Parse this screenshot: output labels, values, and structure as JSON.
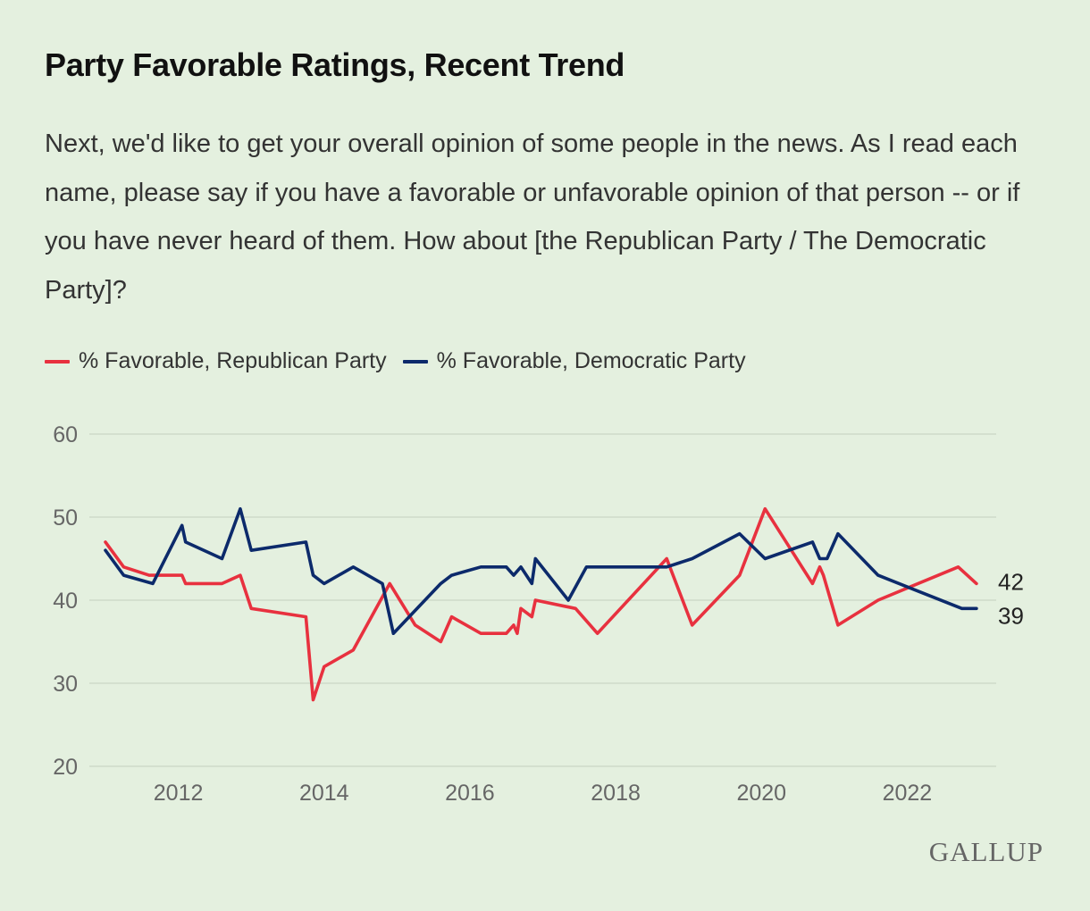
{
  "title": "Party Favorable Ratings, Recent Trend",
  "subtitle": "Next, we'd like to get your overall opinion of some people in the news. As I read each name, please say if you have a favorable or unfavorable opinion of that person -- or if you have never heard of them. How about [the Republican Party / The Democratic Party]?",
  "logo": "GALLUP",
  "colors": {
    "background": "#e4f0df",
    "republican": "#e8313f",
    "democratic": "#0c2a6b",
    "grid": "#c9d5c5"
  },
  "chart_data": {
    "type": "line",
    "title": "Party Favorable Ratings, Recent Trend",
    "xlabel": "",
    "ylabel": "",
    "xlim": [
      2011.0,
      2023.0
    ],
    "ylim": [
      20,
      60
    ],
    "yticks": [
      20,
      30,
      40,
      50,
      60
    ],
    "xticks": [
      "2012",
      "2014",
      "2016",
      "2018",
      "2020",
      "2022"
    ],
    "grid": true,
    "legend_position": "top-left",
    "series": [
      {
        "name": "% Favorable, Republican Party",
        "color": "#e8313f",
        "end_label": "42",
        "x": [
          2011.0,
          2011.25,
          2011.6,
          2012.05,
          2012.1,
          2012.6,
          2012.85,
          2013.0,
          2013.75,
          2013.85,
          2014.0,
          2014.4,
          2014.9,
          2015.25,
          2015.6,
          2015.75,
          2016.15,
          2016.5,
          2016.6,
          2016.65,
          2016.7,
          2016.85,
          2016.9,
          2017.45,
          2017.75,
          2018.7,
          2019.05,
          2019.7,
          2020.05,
          2020.7,
          2020.8,
          2020.85,
          2021.05,
          2021.6,
          2022.7,
          2022.95
        ],
        "y": [
          47,
          44,
          43,
          43,
          42,
          42,
          43,
          39,
          38,
          28,
          32,
          34,
          42,
          37,
          35,
          38,
          36,
          36,
          37,
          36,
          39,
          38,
          40,
          39,
          36,
          45,
          37,
          43,
          51,
          42,
          44,
          43,
          37,
          40,
          44,
          42
        ]
      },
      {
        "name": "% Favorable, Democratic Party",
        "color": "#0c2a6b",
        "end_label": "39",
        "x": [
          2011.0,
          2011.25,
          2011.65,
          2012.05,
          2012.1,
          2012.6,
          2012.85,
          2013.0,
          2013.75,
          2013.85,
          2014.0,
          2014.4,
          2014.8,
          2014.95,
          2015.6,
          2015.75,
          2016.15,
          2016.5,
          2016.6,
          2016.7,
          2016.85,
          2016.9,
          2017.35,
          2017.6,
          2018.7,
          2019.05,
          2019.7,
          2020.05,
          2020.7,
          2020.8,
          2020.9,
          2021.05,
          2021.6,
          2022.75,
          2022.95
        ],
        "y": [
          46,
          43,
          42,
          49,
          47,
          45,
          51,
          46,
          47,
          43,
          42,
          44,
          42,
          36,
          42,
          43,
          44,
          44,
          43,
          44,
          42,
          45,
          40,
          44,
          44,
          45,
          48,
          45,
          47,
          45,
          45,
          48,
          43,
          39,
          39
        ]
      }
    ]
  }
}
